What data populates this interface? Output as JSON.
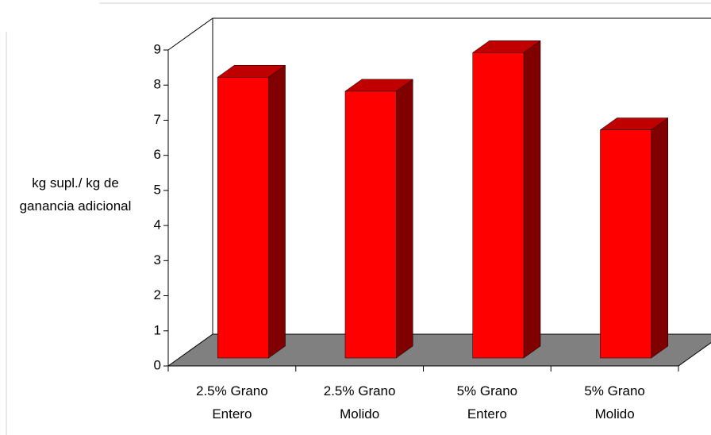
{
  "chart_data": {
    "type": "bar3d",
    "y_label": "kg supl./ kg de ganancia adicional",
    "categories": [
      "2.5% Grano Entero",
      "2.5% Grano Molido",
      "5% Grano Entero",
      "5% Grano Molido"
    ],
    "values": [
      8.0,
      7.6,
      8.7,
      6.5
    ],
    "color": "#ff0000",
    "ylim": [
      0,
      9
    ],
    "yticks": [
      0,
      1,
      2,
      3,
      4,
      5,
      6,
      7,
      8,
      9
    ]
  }
}
